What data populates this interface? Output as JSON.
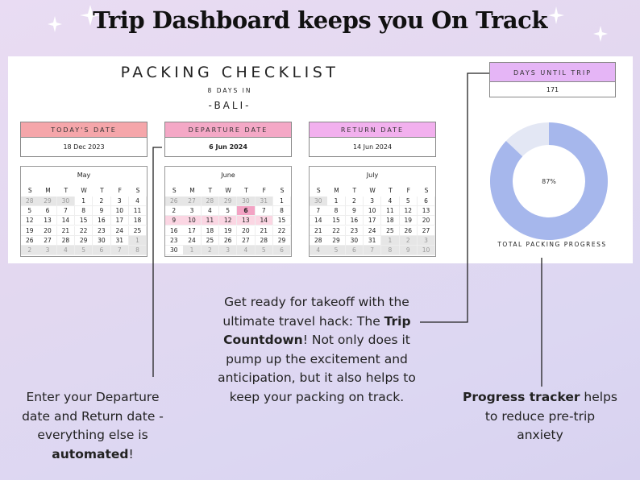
{
  "title": "Trip Dashboard keeps you On Track",
  "sheet": {
    "heading": "PACKING CHECKLIST",
    "subheading": "8 DAYS IN",
    "destination": "-BALI-",
    "todays_date": {
      "label": "TODAY'S DATE",
      "value": "18 Dec 2023"
    },
    "departure_date": {
      "label": "DEPARTURE DATE",
      "value": "6 Jun 2024"
    },
    "return_date": {
      "label": "RETURN DATE",
      "value": "14 Jun 2024"
    },
    "days_until_trip": {
      "label": "DAYS UNTIL TRIP",
      "value": 171
    },
    "weekdays": [
      "S",
      "M",
      "T",
      "W",
      "T",
      "F",
      "S"
    ],
    "calendars": [
      {
        "month": "May",
        "weeks": [
          [
            28,
            29,
            30,
            1,
            2,
            3,
            4
          ],
          [
            5,
            6,
            7,
            8,
            9,
            10,
            11
          ],
          [
            12,
            13,
            14,
            15,
            16,
            17,
            18
          ],
          [
            19,
            20,
            21,
            22,
            23,
            24,
            25
          ],
          [
            26,
            27,
            28,
            29,
            30,
            31,
            1
          ],
          [
            2,
            3,
            4,
            5,
            6,
            7,
            8
          ]
        ]
      },
      {
        "month": "June",
        "weeks": [
          [
            26,
            27,
            28,
            29,
            30,
            31,
            1
          ],
          [
            2,
            3,
            4,
            5,
            6,
            7,
            8
          ],
          [
            9,
            10,
            11,
            12,
            13,
            14,
            15
          ],
          [
            16,
            17,
            18,
            19,
            20,
            21,
            22
          ],
          [
            23,
            24,
            25,
            26,
            27,
            28,
            29
          ],
          [
            30,
            1,
            2,
            3,
            4,
            5,
            6
          ]
        ]
      },
      {
        "month": "July",
        "weeks": [
          [
            30,
            1,
            2,
            3,
            4,
            5,
            6
          ],
          [
            7,
            8,
            9,
            10,
            11,
            12,
            13
          ],
          [
            14,
            15,
            16,
            17,
            18,
            19,
            20
          ],
          [
            21,
            22,
            23,
            24,
            25,
            26,
            27
          ],
          [
            28,
            29,
            30,
            31,
            1,
            2,
            3
          ],
          [
            4,
            5,
            6,
            7,
            8,
            9,
            10
          ]
        ]
      }
    ],
    "progress": {
      "percent": {
        "value": 87,
        "label": "87%"
      },
      "caption": "TOTAL PACKING PROGRESS"
    }
  },
  "notes": {
    "left": [
      [
        "Enter your Departure"
      ],
      [
        "date and Return date -"
      ],
      [
        "everything else is"
      ],
      [
        {
          "text": "automated",
          "bold": true
        },
        "!"
      ]
    ],
    "middle": [
      [
        "Get ready for takeoff with the"
      ],
      [
        "ultimate travel hack: The ",
        {
          "text": "Trip",
          "bold": true
        }
      ],
      [
        {
          "text": "Countdown",
          "bold": true
        },
        "! Not only does it"
      ],
      [
        "pump up the excitement and"
      ],
      [
        "anticipation, but it also helps to"
      ],
      [
        "keep your packing on track."
      ]
    ],
    "right": [
      [
        {
          "text": "Progress tracker",
          "bold": true
        },
        " helps"
      ],
      [
        "to reduce pre-trip"
      ],
      [
        "anxiety"
      ]
    ]
  }
}
